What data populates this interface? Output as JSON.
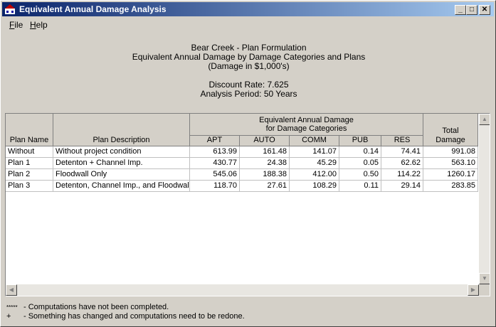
{
  "window": {
    "title": "Equivalent Annual Damage Analysis",
    "min_glyph": "_",
    "max_glyph": "□",
    "close_glyph": "✕"
  },
  "menu": {
    "file": {
      "accel": "F",
      "rest": "ile"
    },
    "help": {
      "accel": "H",
      "rest": "elp"
    }
  },
  "heading": {
    "line1": "Bear Creek - Plan Formulation",
    "line2": "Equivalent Annual Damage by Damage Categories and Plans",
    "line3": "(Damage in $1,000's)",
    "discount_rate": "Discount Rate:  7.625",
    "analysis_period": "Analysis Period:  50 Years"
  },
  "table": {
    "group_header_line1": "Equivalent Annual Damage",
    "group_header_line2": "for Damage Categories",
    "col_plan_name": "Plan Name",
    "col_plan_desc": "Plan Description",
    "categories": [
      "APT",
      "AUTO",
      "COMM",
      "PUB",
      "RES"
    ],
    "total_line1": "Total",
    "total_line2": "Damage",
    "rows": [
      {
        "name": "Without",
        "desc": "Without project condition",
        "vals": [
          "613.99",
          "161.48",
          "141.07",
          "0.14",
          "74.41"
        ],
        "total": "991.08"
      },
      {
        "name": "Plan 1",
        "desc": "Detenton + Channel Imp.",
        "vals": [
          "430.77",
          "24.38",
          "45.29",
          "0.05",
          "62.62"
        ],
        "total": "563.10"
      },
      {
        "name": "Plan 2",
        "desc": "Floodwall Only",
        "vals": [
          "545.06",
          "188.38",
          "412.00",
          "0.50",
          "114.22"
        ],
        "total": "1260.17"
      },
      {
        "name": "Plan 3",
        "desc": "Detenton, Channel Imp., and Floodwall",
        "vals": [
          "118.70",
          "27.61",
          "108.29",
          "0.11",
          "29.14"
        ],
        "total": "283.85"
      }
    ]
  },
  "legend": {
    "line1_symbol": "*****",
    "line1_text": "- Computations have not been completed.",
    "line2_symbol": "+",
    "line2_text": "- Something has changed and computations need to be redone."
  },
  "scroll": {
    "up_glyph": "▲",
    "down_glyph": "▼",
    "left_glyph": "◀",
    "right_glyph": "▶"
  }
}
